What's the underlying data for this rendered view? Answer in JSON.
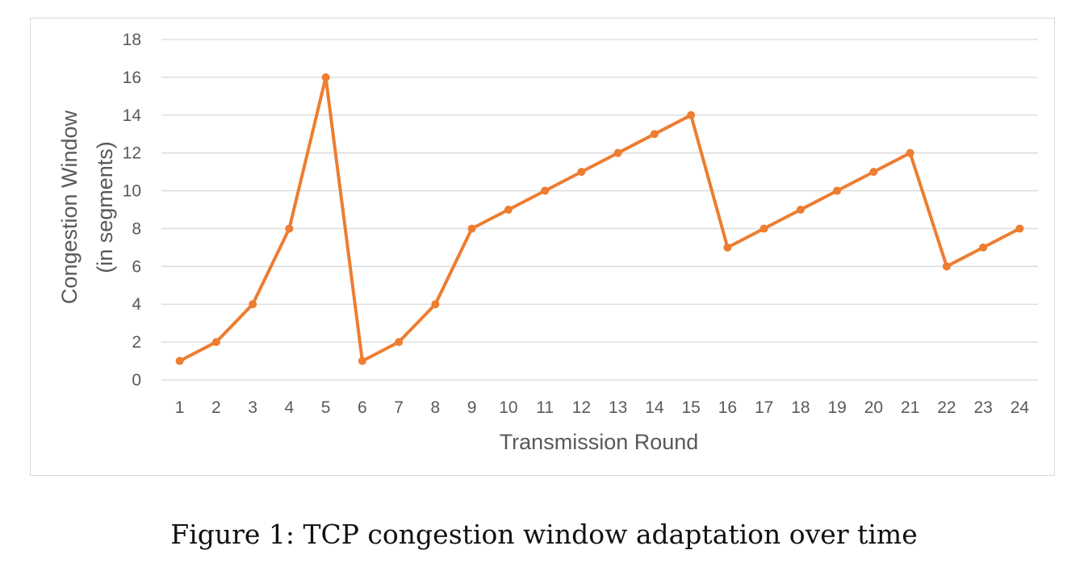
{
  "caption": "Figure 1: TCP congestion window adaptation over time",
  "colors": {
    "series": "#ED7D31",
    "grid": "#d9d9d9",
    "text": "#595959"
  },
  "chart_data": {
    "type": "line",
    "title": "",
    "xlabel": "Transmission Round",
    "ylabel_lines": [
      "Congestion Window",
      "(in segments)"
    ],
    "x": [
      1,
      2,
      3,
      4,
      5,
      6,
      7,
      8,
      9,
      10,
      11,
      12,
      13,
      14,
      15,
      16,
      17,
      18,
      19,
      20,
      21,
      22,
      23,
      24
    ],
    "y": [
      1,
      2,
      4,
      8,
      16,
      1,
      2,
      4,
      8,
      9,
      10,
      11,
      12,
      13,
      14,
      7,
      8,
      9,
      10,
      11,
      12,
      6,
      7,
      8
    ],
    "ylim": [
      0,
      18
    ],
    "yticks": [
      0,
      2,
      4,
      6,
      8,
      10,
      12,
      14,
      16,
      18
    ],
    "grid": true,
    "legend": "none",
    "markers": true
  }
}
